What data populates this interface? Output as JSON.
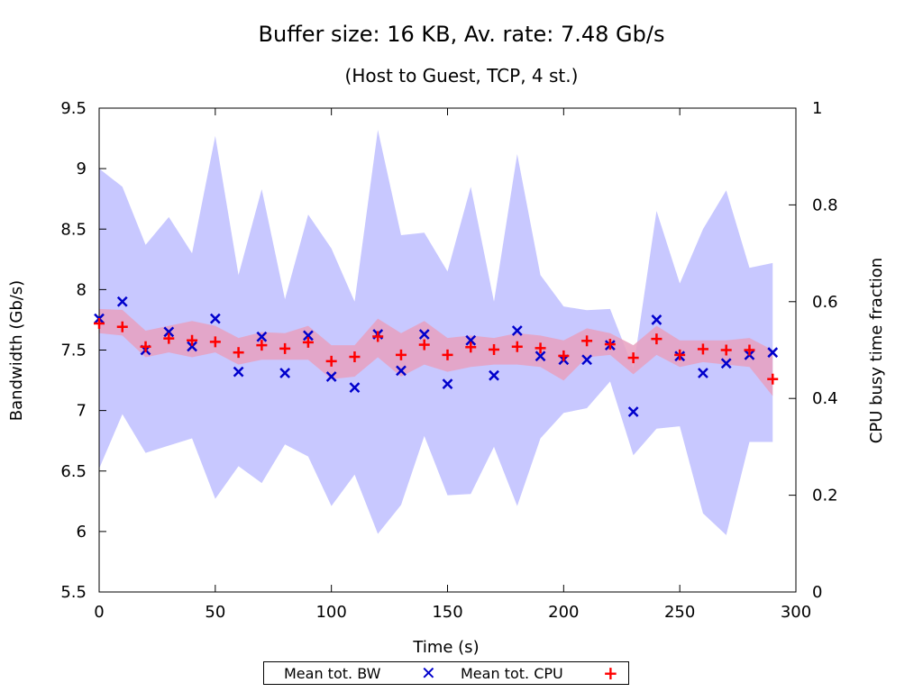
{
  "chart_data": {
    "type": "scatter",
    "title": "Buffer size: 16 KB, Av. rate: 7.48 Gb/s",
    "subtitle": "(Host to Guest, TCP, 4 st.)",
    "xlabel": "Time (s)",
    "ylabel": "Bandwidth (Gb/s)",
    "y2label": "CPU busy time fraction",
    "xlim": [
      0,
      300
    ],
    "ylim": [
      5.5,
      9.5
    ],
    "y2lim": [
      0,
      1
    ],
    "x_ticks": [
      "0",
      "50",
      "100",
      "150",
      "200",
      "250",
      "300"
    ],
    "y_ticks": [
      "5.5",
      "6",
      "6.5",
      "7",
      "7.5",
      "8",
      "8.5",
      "9",
      "9.5"
    ],
    "y2_ticks": [
      "0",
      "0.2",
      "0.4",
      "0.6",
      "0.8",
      "1"
    ],
    "grid": false,
    "legend_position": "bottom",
    "colors": {
      "bw_marker": "#0000cc",
      "cpu_marker": "#ff0000",
      "bw_band": "#c8c8ff",
      "cpu_band": "#e8a0c0"
    },
    "series": [
      {
        "name": "Mean tot. BW",
        "marker": "x",
        "axis": "left",
        "x": [
          0,
          10,
          20,
          30,
          40,
          50,
          60,
          70,
          80,
          90,
          100,
          110,
          120,
          130,
          140,
          150,
          160,
          170,
          180,
          190,
          200,
          210,
          220,
          230,
          240,
          250,
          260,
          270,
          280,
          290
        ],
        "values": [
          7.76,
          7.9,
          7.5,
          7.65,
          7.53,
          7.76,
          7.32,
          7.61,
          7.31,
          7.62,
          7.28,
          7.19,
          7.63,
          7.33,
          7.63,
          7.22,
          7.58,
          7.29,
          7.66,
          7.45,
          7.42,
          7.42,
          7.54,
          6.99,
          7.75,
          7.45,
          7.31,
          7.39,
          7.46,
          7.48
        ],
        "band_upper": [
          9.0,
          8.85,
          8.37,
          8.6,
          8.3,
          9.27,
          8.12,
          8.83,
          7.92,
          8.62,
          8.34,
          7.9,
          9.32,
          8.45,
          8.47,
          8.15,
          8.85,
          7.9,
          9.12,
          8.12,
          7.86,
          7.83,
          7.84,
          7.35,
          8.65,
          8.05,
          8.5,
          8.82,
          8.18,
          8.22
        ],
        "band_lower": [
          6.52,
          6.97,
          6.65,
          6.71,
          6.77,
          6.27,
          6.54,
          6.4,
          6.72,
          6.62,
          6.21,
          6.47,
          5.98,
          6.22,
          6.79,
          6.3,
          6.31,
          6.7,
          6.21,
          6.77,
          6.98,
          7.02,
          7.24,
          6.63,
          6.85,
          6.87,
          6.15,
          5.97,
          6.74,
          6.74
        ]
      },
      {
        "name": "Mean tot. CPU",
        "marker": "+",
        "axis": "right",
        "x": [
          0,
          10,
          20,
          30,
          40,
          50,
          60,
          70,
          80,
          90,
          100,
          110,
          120,
          130,
          140,
          150,
          160,
          170,
          180,
          190,
          200,
          210,
          220,
          230,
          240,
          250,
          260,
          270,
          280,
          290
        ],
        "values": [
          0.555,
          0.548,
          0.507,
          0.524,
          0.52,
          0.517,
          0.495,
          0.51,
          0.503,
          0.516,
          0.477,
          0.486,
          0.528,
          0.49,
          0.511,
          0.49,
          0.506,
          0.501,
          0.507,
          0.504,
          0.488,
          0.519,
          0.512,
          0.484,
          0.523,
          0.49,
          0.502,
          0.5,
          0.5,
          0.44
        ],
        "band_upper": [
          0.585,
          0.583,
          0.54,
          0.55,
          0.56,
          0.55,
          0.525,
          0.537,
          0.535,
          0.55,
          0.51,
          0.51,
          0.565,
          0.535,
          0.56,
          0.525,
          0.53,
          0.525,
          0.535,
          0.53,
          0.52,
          0.545,
          0.535,
          0.51,
          0.55,
          0.52,
          0.52,
          0.52,
          0.525,
          0.5
        ],
        "band_lower": [
          0.535,
          0.53,
          0.485,
          0.495,
          0.485,
          0.495,
          0.47,
          0.48,
          0.48,
          0.48,
          0.44,
          0.445,
          0.485,
          0.445,
          0.47,
          0.455,
          0.465,
          0.47,
          0.47,
          0.465,
          0.437,
          0.485,
          0.49,
          0.45,
          0.49,
          0.465,
          0.475,
          0.47,
          0.465,
          0.405
        ]
      }
    ]
  }
}
